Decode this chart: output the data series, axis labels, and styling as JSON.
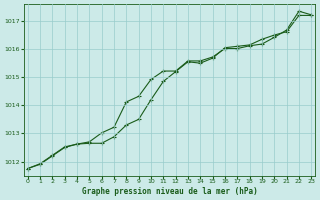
{
  "line1_x": [
    0,
    1,
    2,
    3,
    4,
    5,
    6,
    7,
    8,
    9,
    10,
    11,
    12,
    13,
    14,
    15,
    16,
    17,
    18,
    19,
    20,
    21,
    22,
    23
  ],
  "line1_y": [
    1011.75,
    1011.9,
    1012.2,
    1012.5,
    1012.62,
    1012.65,
    1012.65,
    1012.88,
    1013.3,
    1013.5,
    1014.2,
    1014.85,
    1015.2,
    1015.55,
    1015.5,
    1015.68,
    1016.05,
    1016.1,
    1016.15,
    1016.35,
    1016.5,
    1016.62,
    1017.2,
    1017.2
  ],
  "line2_x": [
    0,
    1,
    2,
    3,
    4,
    5,
    6,
    7,
    8,
    9,
    10,
    11,
    12,
    13,
    14,
    15,
    16,
    17,
    18,
    19,
    20,
    21,
    22,
    23
  ],
  "line2_y": [
    1011.75,
    1011.92,
    1012.22,
    1012.52,
    1012.62,
    1012.7,
    1013.02,
    1013.22,
    1014.12,
    1014.32,
    1014.92,
    1015.22,
    1015.22,
    1015.58,
    1015.58,
    1015.72,
    1016.02,
    1016.02,
    1016.12,
    1016.18,
    1016.42,
    1016.68,
    1017.35,
    1017.22
  ],
  "line_color": "#1a5c1a",
  "bg_color": "#cceae8",
  "grid_color": "#99cccc",
  "text_color": "#1a5c1a",
  "ylabel_ticks": [
    1012,
    1013,
    1014,
    1015,
    1016,
    1017
  ],
  "xlabel_ticks": [
    0,
    1,
    2,
    3,
    4,
    5,
    6,
    7,
    8,
    9,
    10,
    11,
    12,
    13,
    14,
    15,
    16,
    17,
    18,
    19,
    20,
    21,
    22,
    23
  ],
  "ylim": [
    1011.5,
    1017.6
  ],
  "xlim": [
    -0.3,
    23.3
  ],
  "xlabel": "Graphe pression niveau de la mer (hPa)",
  "markersize": 3.5,
  "linewidth": 0.8
}
